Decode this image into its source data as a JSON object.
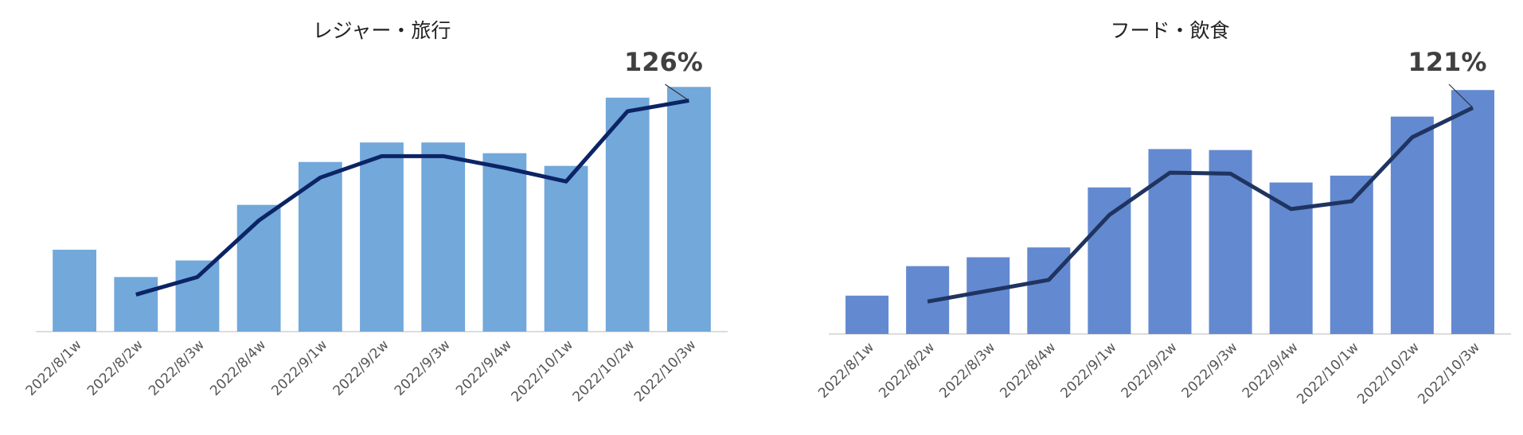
{
  "chart_data": [
    {
      "type": "bar-line",
      "title": "レジャー・旅行",
      "categories": [
        "2022/8/1w",
        "2022/8/2w",
        "2022/8/3w",
        "2022/8/4w",
        "2022/9/1w",
        "2022/9/2w",
        "2022/9/3w",
        "2022/9/4w",
        "2022/10/1w",
        "2022/10/2w",
        "2022/10/3w"
      ],
      "series": [
        {
          "kind": "bar",
          "color": "#72a8da",
          "values": [
            84,
            56,
            73,
            130,
            174,
            194,
            194,
            183,
            170,
            240,
            251
          ]
        },
        {
          "kind": "line",
          "color": "#0b2466",
          "values": [
            null,
            38,
            56,
            114,
            158,
            180,
            180,
            168,
            154,
            226,
            237
          ]
        }
      ],
      "annotation": "126%",
      "ylim": [
        0,
        270
      ]
    },
    {
      "type": "bar-line",
      "title": "フード・飲食",
      "categories": [
        "2022/8/1w",
        "2022/8/2w",
        "2022/8/3w",
        "2022/8/4w",
        "2022/9/1w",
        "2022/9/2w",
        "2022/9/3w",
        "2022/9/4w",
        "2022/10/1w",
        "2022/10/2w",
        "2022/10/3w"
      ],
      "series": [
        {
          "kind": "bar",
          "color": "#6389d0",
          "values": [
            39,
            69,
            78,
            88,
            149,
            188,
            187,
            154,
            161,
            221,
            248
          ]
        },
        {
          "kind": "line",
          "color": "#1f3461",
          "values": [
            null,
            33,
            44,
            55,
            121,
            164,
            163,
            127,
            135,
            200,
            230
          ]
        }
      ],
      "annotation": "121%",
      "ylim": [
        0,
        270
      ]
    }
  ]
}
